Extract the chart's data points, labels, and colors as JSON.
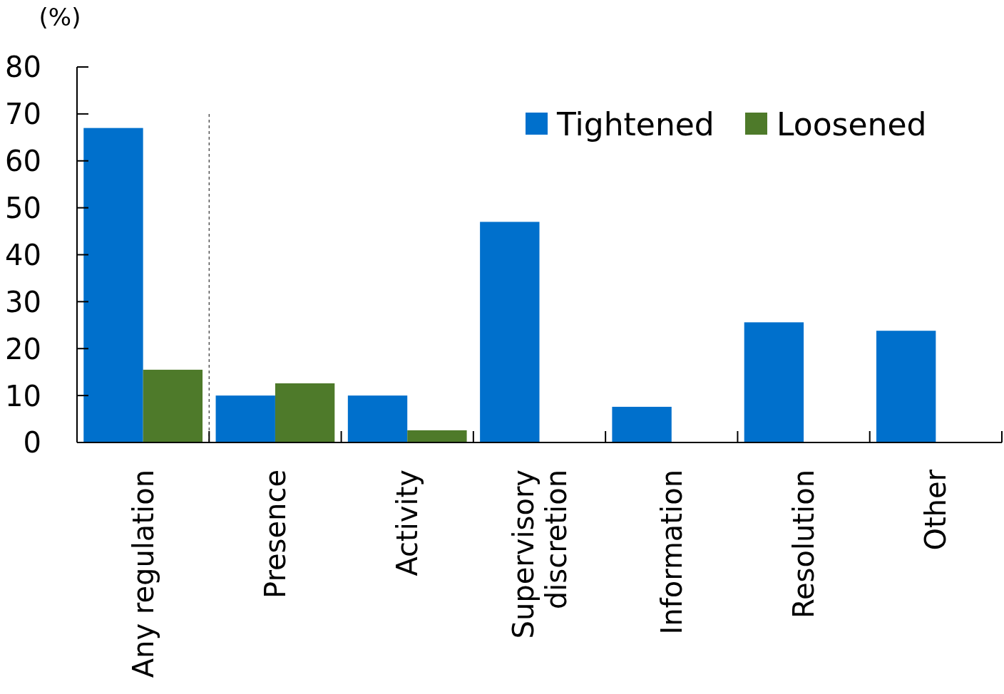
{
  "chart_data": {
    "type": "bar",
    "ylabel": "(%)",
    "categories": [
      "Any regulation",
      "Presence",
      "Activity",
      "Supervisory discretion",
      "Information",
      "Resolution",
      "Other"
    ],
    "series": [
      {
        "name": "Tightened",
        "color": "#0070cc",
        "values": [
          67,
          10,
          10,
          47,
          7.6,
          25.6,
          23.8
        ]
      },
      {
        "name": "Loosened",
        "color": "#4e7a2a",
        "values": [
          15.5,
          12.6,
          2.6,
          0,
          0,
          0,
          0
        ]
      }
    ],
    "ylim": [
      0,
      80
    ],
    "yticks": [
      0,
      10,
      20,
      30,
      40,
      50,
      60,
      70,
      80
    ],
    "grid": false,
    "legend": "top right"
  }
}
